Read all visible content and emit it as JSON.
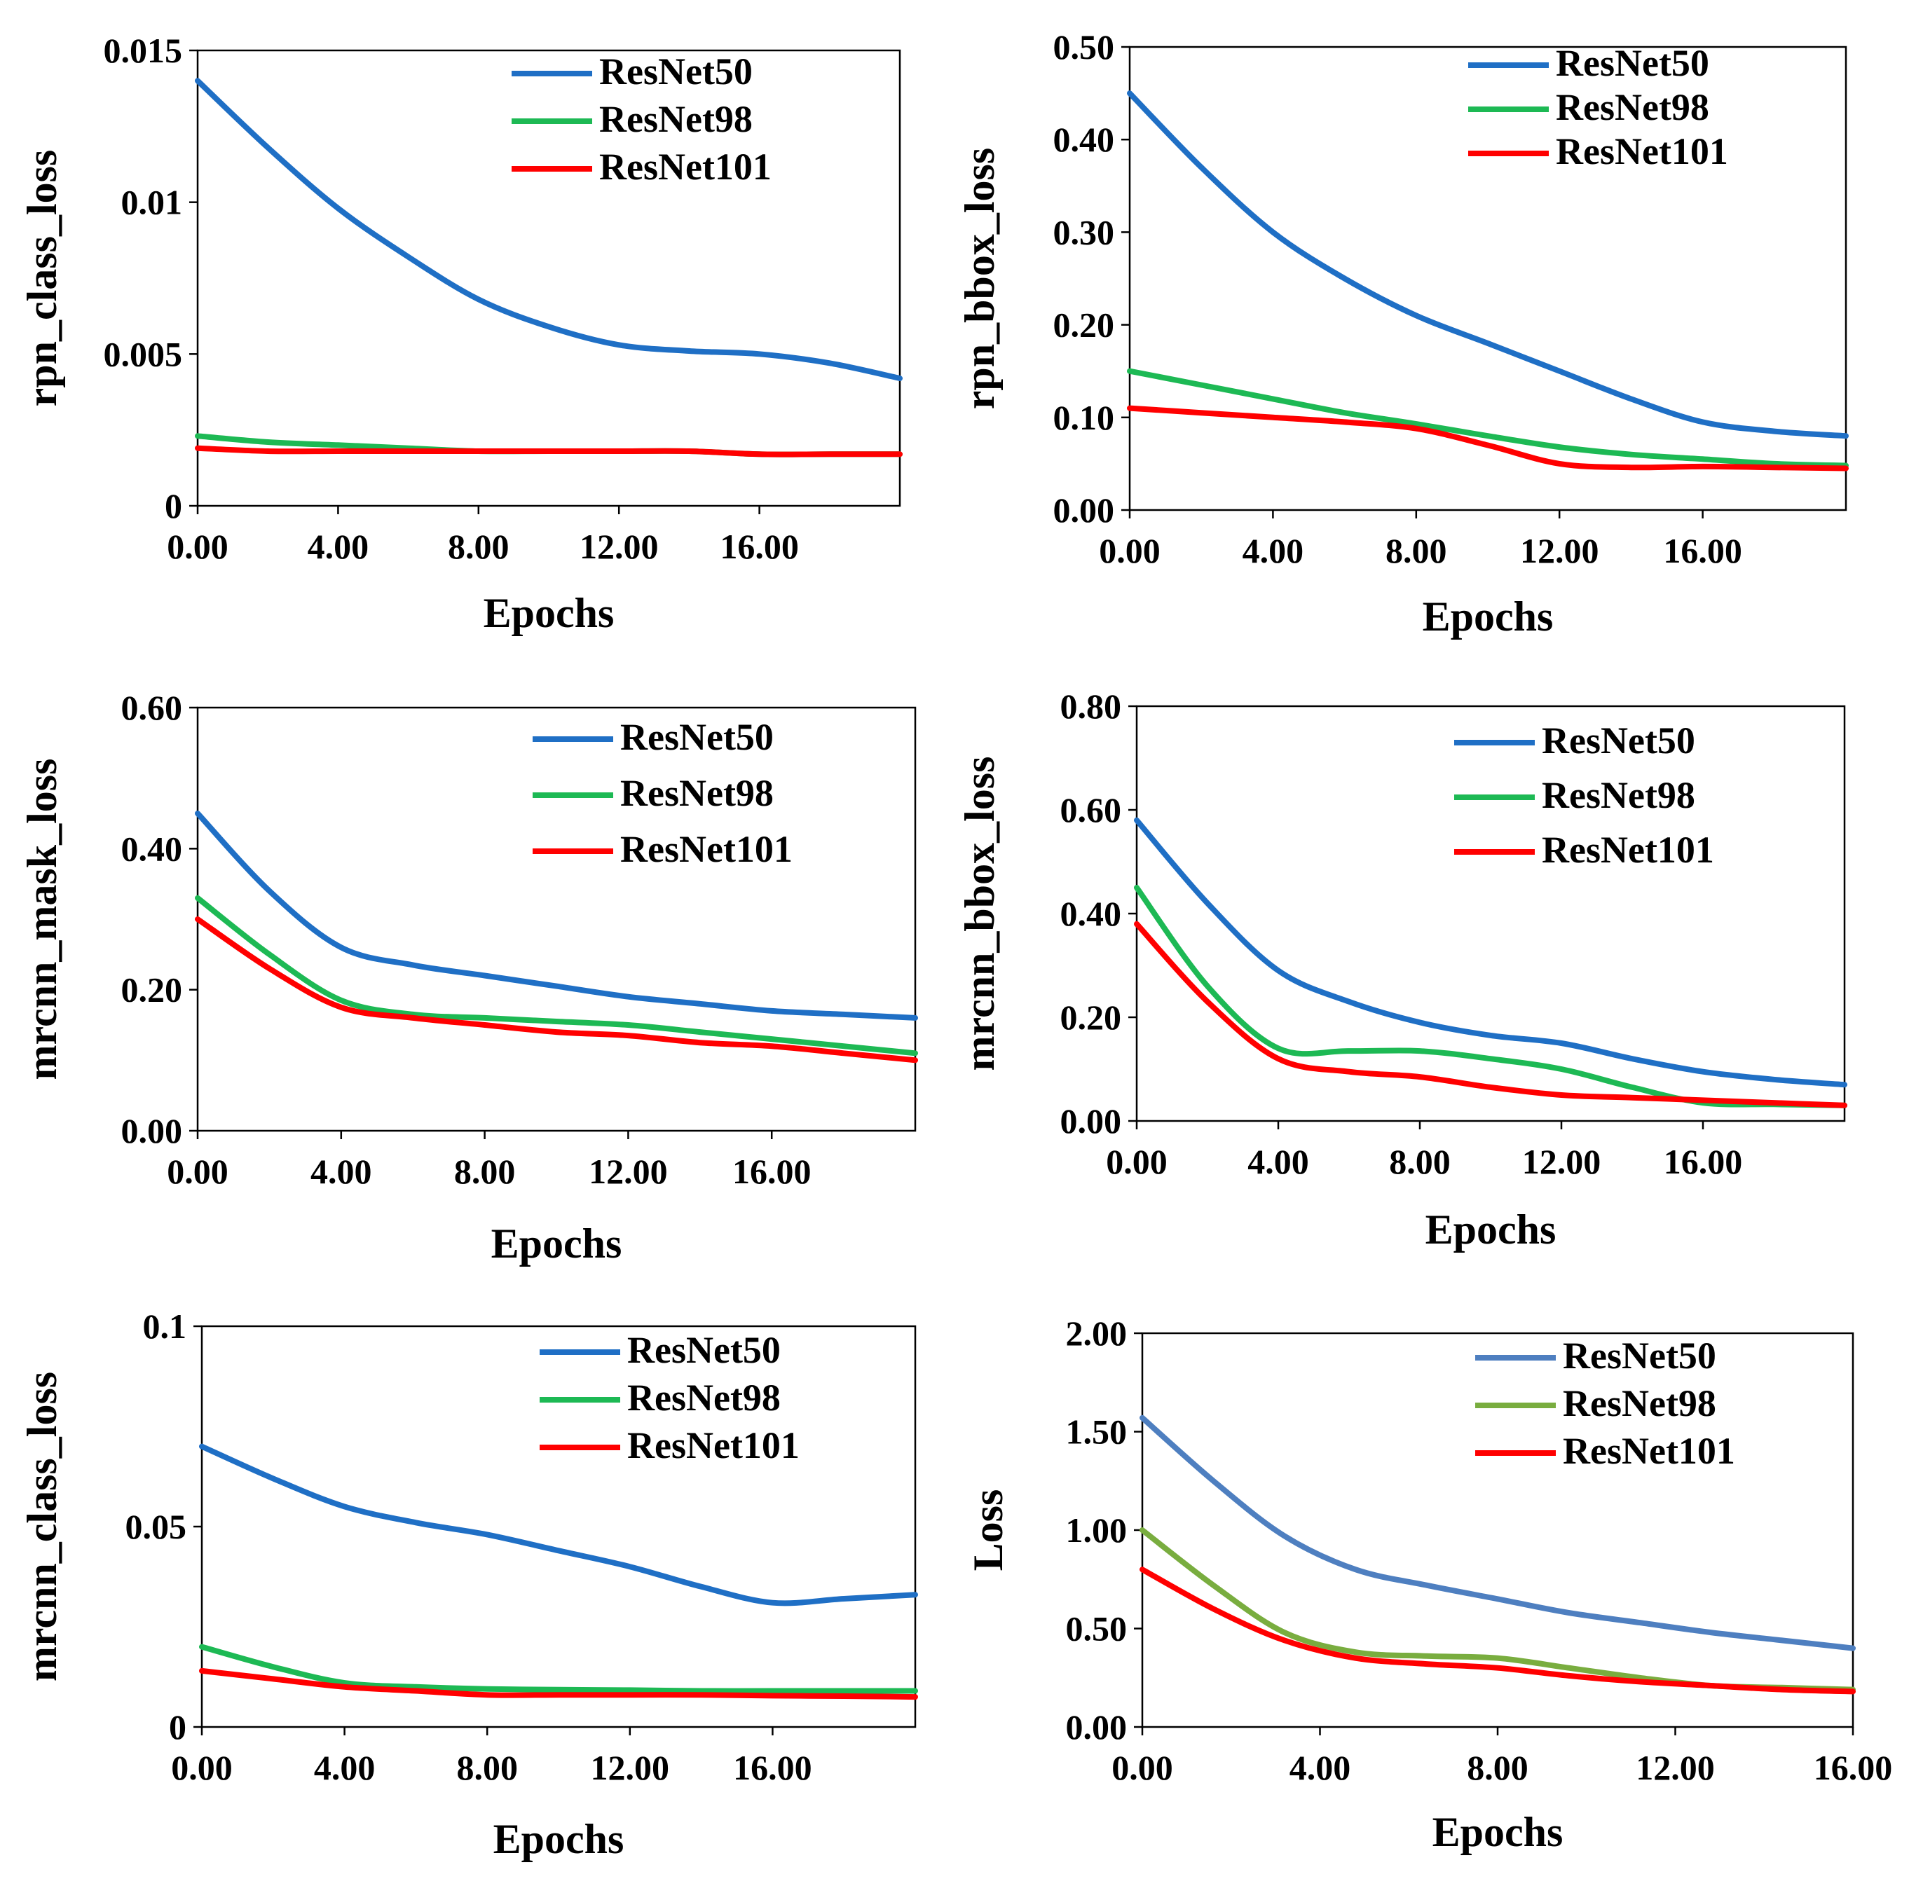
{
  "chart_data": [
    {
      "type": "line",
      "ylabel": "rpn_class_loss",
      "xlabel": "Epochs",
      "xlim": [
        0,
        20
      ],
      "ylim": [
        0,
        0.015
      ],
      "x_ticks": [
        "0.00",
        "4.00",
        "8.00",
        "12.00",
        "16.00"
      ],
      "x_tick_values": [
        0,
        4,
        8,
        12,
        16
      ],
      "y_ticks": [
        "0",
        "0.005",
        "0.01",
        "0.015"
      ],
      "y_tick_values": [
        0,
        0.005,
        0.01,
        0.015
      ],
      "legend": "top-right",
      "x": [
        0,
        2,
        4,
        6,
        8,
        10,
        12,
        14,
        16,
        18,
        20
      ],
      "series": [
        {
          "name": "ResNet50",
          "color": "#1F6FC5",
          "values": [
            0.014,
            0.0118,
            0.0098,
            0.0082,
            0.0068,
            0.0059,
            0.0053,
            0.0051,
            0.005,
            0.0047,
            0.0042
          ]
        },
        {
          "name": "ResNet98",
          "color": "#1DB954",
          "values": [
            0.0023,
            0.0021,
            0.002,
            0.0019,
            0.0018,
            0.0018,
            0.0018,
            0.0018,
            0.0017,
            0.0017,
            0.0017
          ]
        },
        {
          "name": "ResNet101",
          "color": "#FF0000",
          "values": [
            0.0019,
            0.0018,
            0.0018,
            0.0018,
            0.0018,
            0.0018,
            0.0018,
            0.0018,
            0.0017,
            0.0017,
            0.0017
          ]
        }
      ]
    },
    {
      "type": "line",
      "ylabel": "rpn_bbox_loss",
      "xlabel": "Epochs",
      "xlim": [
        0,
        20
      ],
      "ylim": [
        0,
        0.5
      ],
      "x_ticks": [
        "0.00",
        "4.00",
        "8.00",
        "12.00",
        "16.00"
      ],
      "x_tick_values": [
        0,
        4,
        8,
        12,
        16
      ],
      "y_ticks": [
        "0.00",
        "0.10",
        "0.20",
        "0.30",
        "0.40",
        "0.50"
      ],
      "y_tick_values": [
        0,
        0.1,
        0.2,
        0.3,
        0.4,
        0.5
      ],
      "legend": "top-right",
      "x": [
        0,
        2,
        4,
        6,
        8,
        10,
        12,
        14,
        16,
        18,
        20
      ],
      "series": [
        {
          "name": "ResNet50",
          "color": "#1F6FC5",
          "values": [
            0.45,
            0.37,
            0.3,
            0.25,
            0.21,
            0.18,
            0.15,
            0.12,
            0.095,
            0.085,
            0.08
          ]
        },
        {
          "name": "ResNet98",
          "color": "#1DB954",
          "values": [
            0.15,
            0.135,
            0.12,
            0.105,
            0.093,
            0.08,
            0.068,
            0.06,
            0.055,
            0.05,
            0.048
          ]
        },
        {
          "name": "ResNet101",
          "color": "#FF0000",
          "values": [
            0.11,
            0.105,
            0.1,
            0.095,
            0.088,
            0.07,
            0.05,
            0.046,
            0.047,
            0.046,
            0.045
          ]
        }
      ]
    },
    {
      "type": "line",
      "ylabel": "mrcnn_mask_loss",
      "xlabel": "Epochs",
      "xlim": [
        0,
        20
      ],
      "ylim": [
        0,
        0.6
      ],
      "x_ticks": [
        "0.00",
        "4.00",
        "8.00",
        "12.00",
        "16.00"
      ],
      "x_tick_values": [
        0,
        4,
        8,
        12,
        16
      ],
      "y_ticks": [
        "0.00",
        "0.20",
        "0.40",
        "0.60"
      ],
      "y_tick_values": [
        0,
        0.2,
        0.4,
        0.6
      ],
      "legend": "top-right",
      "x": [
        0,
        2,
        4,
        6,
        8,
        10,
        12,
        14,
        16,
        18,
        20
      ],
      "series": [
        {
          "name": "ResNet50",
          "color": "#1F6FC5",
          "values": [
            0.45,
            0.34,
            0.26,
            0.235,
            0.22,
            0.205,
            0.19,
            0.18,
            0.17,
            0.165,
            0.16
          ]
        },
        {
          "name": "ResNet98",
          "color": "#1DB954",
          "values": [
            0.33,
            0.25,
            0.185,
            0.165,
            0.16,
            0.155,
            0.15,
            0.14,
            0.13,
            0.12,
            0.11
          ]
        },
        {
          "name": "ResNet101",
          "color": "#FF0000",
          "values": [
            0.3,
            0.23,
            0.175,
            0.16,
            0.15,
            0.14,
            0.135,
            0.125,
            0.12,
            0.11,
            0.1
          ]
        }
      ]
    },
    {
      "type": "line",
      "ylabel": "mrcnn_bbox_loss",
      "xlabel": "Epochs",
      "xlim": [
        0,
        20
      ],
      "ylim": [
        0,
        0.8
      ],
      "x_ticks": [
        "0.00",
        "4.00",
        "8.00",
        "12.00",
        "16.00"
      ],
      "x_tick_values": [
        0,
        4,
        8,
        12,
        16
      ],
      "y_ticks": [
        "0.00",
        "0.20",
        "0.40",
        "0.60",
        "0.80"
      ],
      "y_tick_values": [
        0,
        0.2,
        0.4,
        0.6,
        0.8
      ],
      "legend": "top-right",
      "x": [
        0,
        2,
        4,
        6,
        8,
        10,
        12,
        14,
        16,
        18,
        20
      ],
      "series": [
        {
          "name": "ResNet50",
          "color": "#1F6FC5",
          "values": [
            0.58,
            0.42,
            0.29,
            0.23,
            0.19,
            0.165,
            0.15,
            0.12,
            0.095,
            0.08,
            0.07
          ]
        },
        {
          "name": "ResNet98",
          "color": "#1DB954",
          "values": [
            0.45,
            0.26,
            0.14,
            0.135,
            0.135,
            0.12,
            0.1,
            0.065,
            0.035,
            0.032,
            0.03
          ]
        },
        {
          "name": "ResNet101",
          "color": "#FF0000",
          "values": [
            0.38,
            0.23,
            0.12,
            0.095,
            0.085,
            0.065,
            0.05,
            0.045,
            0.04,
            0.035,
            0.03
          ]
        }
      ]
    },
    {
      "type": "line",
      "ylabel": "mrcnn_class_loss",
      "xlabel": "Epochs",
      "xlim": [
        0,
        20
      ],
      "ylim": [
        0,
        0.1
      ],
      "x_ticks": [
        "0.00",
        "4.00",
        "8.00",
        "12.00",
        "16.00"
      ],
      "x_tick_values": [
        0,
        4,
        8,
        12,
        16
      ],
      "y_ticks": [
        "0",
        "0.05",
        "0.1"
      ],
      "y_tick_values": [
        0,
        0.05,
        0.1
      ],
      "legend": "top-right",
      "x": [
        0,
        2,
        4,
        6,
        8,
        10,
        12,
        14,
        16,
        18,
        20
      ],
      "series": [
        {
          "name": "ResNet50",
          "color": "#1F6FC5",
          "values": [
            0.07,
            0.062,
            0.055,
            0.051,
            0.048,
            0.044,
            0.04,
            0.035,
            0.031,
            0.032,
            0.033
          ]
        },
        {
          "name": "ResNet98",
          "color": "#1DB954",
          "values": [
            0.02,
            0.015,
            0.011,
            0.01,
            0.0095,
            0.0093,
            0.0092,
            0.009,
            0.009,
            0.009,
            0.009
          ]
        },
        {
          "name": "ResNet101",
          "color": "#FF0000",
          "values": [
            0.014,
            0.012,
            0.01,
            0.009,
            0.008,
            0.008,
            0.008,
            0.008,
            0.0078,
            0.0077,
            0.0075
          ]
        }
      ]
    },
    {
      "type": "line",
      "ylabel": "Loss",
      "xlabel": "Epochs",
      "xlim": [
        0,
        16
      ],
      "ylim": [
        0,
        2
      ],
      "x_ticks": [
        "0.00",
        "4.00",
        "8.00",
        "12.00",
        "16.00"
      ],
      "x_tick_values": [
        0,
        4,
        8,
        12,
        16
      ],
      "y_ticks": [
        "0.00",
        "0.50",
        "1.00",
        "1.50",
        "2.00"
      ],
      "y_tick_values": [
        0,
        0.5,
        1.0,
        1.5,
        2.0
      ],
      "legend": "top-right",
      "x": [
        0,
        1.6,
        3.2,
        4.8,
        6.4,
        8,
        9.6,
        11.2,
        12.8,
        14.4,
        16
      ],
      "series": [
        {
          "name": "ResNet50",
          "color": "#4E7FC0",
          "values": [
            1.57,
            1.25,
            0.97,
            0.8,
            0.72,
            0.65,
            0.58,
            0.53,
            0.48,
            0.44,
            0.4
          ]
        },
        {
          "name": "ResNet98",
          "color": "#79AD3F",
          "values": [
            1.0,
            0.72,
            0.48,
            0.38,
            0.36,
            0.35,
            0.3,
            0.25,
            0.21,
            0.2,
            0.19
          ]
        },
        {
          "name": "ResNet101",
          "color": "#FF0000",
          "values": [
            0.8,
            0.6,
            0.44,
            0.35,
            0.32,
            0.3,
            0.26,
            0.23,
            0.21,
            0.19,
            0.18
          ]
        }
      ]
    }
  ]
}
